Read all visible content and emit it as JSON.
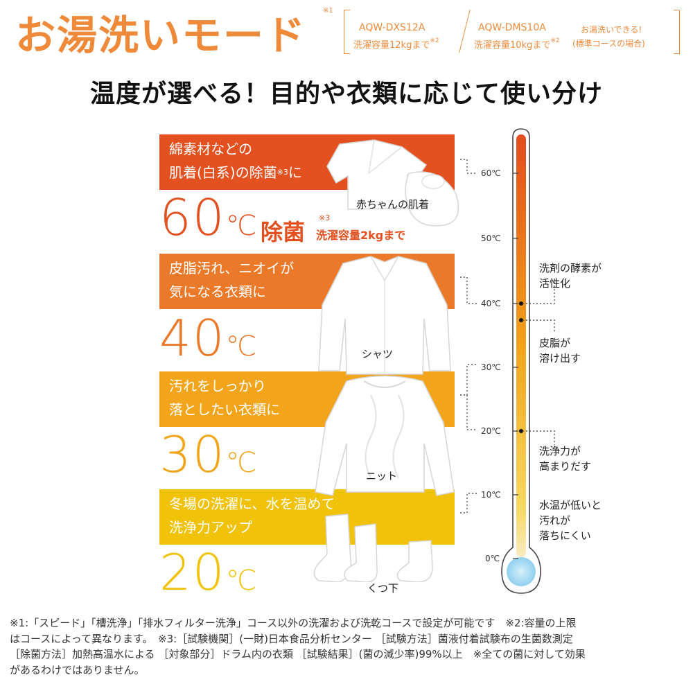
{
  "header": {
    "mode_title": "お湯洗いモード",
    "mode_title_sup": "※1",
    "model_a": "AQW-DXS12A",
    "model_a_capacity": "洗濯容量12kgまで",
    "model_a_sup": "※2",
    "model_b": "AQW-DMS10A",
    "model_b_capacity": "洗濯容量10kgまで",
    "model_b_sup": "※2",
    "note_line1": "お湯洗いできる!",
    "note_line2": "(標準コースの場合)"
  },
  "subtitle": "温度が選べる！目的や衣類に応じて使い分け",
  "bands": [
    {
      "line1": "綿素材などの",
      "line2": "肌着(白系)の除菌",
      "line2_sup": "※3",
      "line2_tail": "に",
      "temp": "60",
      "unit": "℃",
      "extra": "除菌",
      "extra_sup": "※3",
      "extra_note": "洗濯容量2kgまで",
      "color": "#e2511f",
      "text_color": "#e2511f",
      "cloth_label": "赤ちゃんの肌着"
    },
    {
      "line1": "皮脂汚れ、ニオイが",
      "line2": "気になる衣類に",
      "temp": "40",
      "unit": "℃",
      "color": "#ea7a2a",
      "text_color": "#ea7a2a",
      "cloth_label": "シャツ"
    },
    {
      "line1": "汚れをしっかり",
      "line2": "落としたい衣類に",
      "temp": "30",
      "unit": "℃",
      "color": "#f2a51a",
      "text_color": "#f2a51a",
      "cloth_label": "ニット"
    },
    {
      "line1": "冬場の洗濯に、水を温めて",
      "line2": "洗浄力アップ",
      "temp": "20",
      "unit": "℃",
      "color": "#f0c20a",
      "text_color": "#f0c20a",
      "cloth_label": "くつ下"
    }
  ],
  "thermometer": {
    "ticks": [
      "60℃",
      "50℃",
      "40℃",
      "30℃",
      "20℃",
      "10℃",
      "0℃"
    ],
    "effects": [
      {
        "line1": "洗剤の酵素が",
        "line2": "活性化"
      },
      {
        "line1": "皮脂が",
        "line2": "溶け出す"
      },
      {
        "line1": "洗浄力が",
        "line2": "高まりだす"
      },
      {
        "line1": "水温が低いと",
        "line2": "汚れが",
        "line3": "落ちにくい"
      }
    ],
    "colors": {
      "top": "#e24b1e",
      "mid": "#f2a31a",
      "low": "#f6d860",
      "bulb": "#8fd0ee"
    }
  },
  "footnote": {
    "line1": "※1:「スピード」「槽洗浄」「排水フィルター洗浄」コース以外の洗濯および洗乾コースで設定が可能です　※2:容量の上限",
    "line2": "はコースによって異なります。　※3:［試験機関］(一財)日本食品分析センター ［試験方法］菌液付着試験布の生菌数測定",
    "line3": "［除菌方法］加熱高温水による ［対象部分］ドラム内の衣類 ［試験結果］(菌の減少率)99%以上　※全ての菌に対して効果",
    "line4": "があるわけではありません。"
  }
}
